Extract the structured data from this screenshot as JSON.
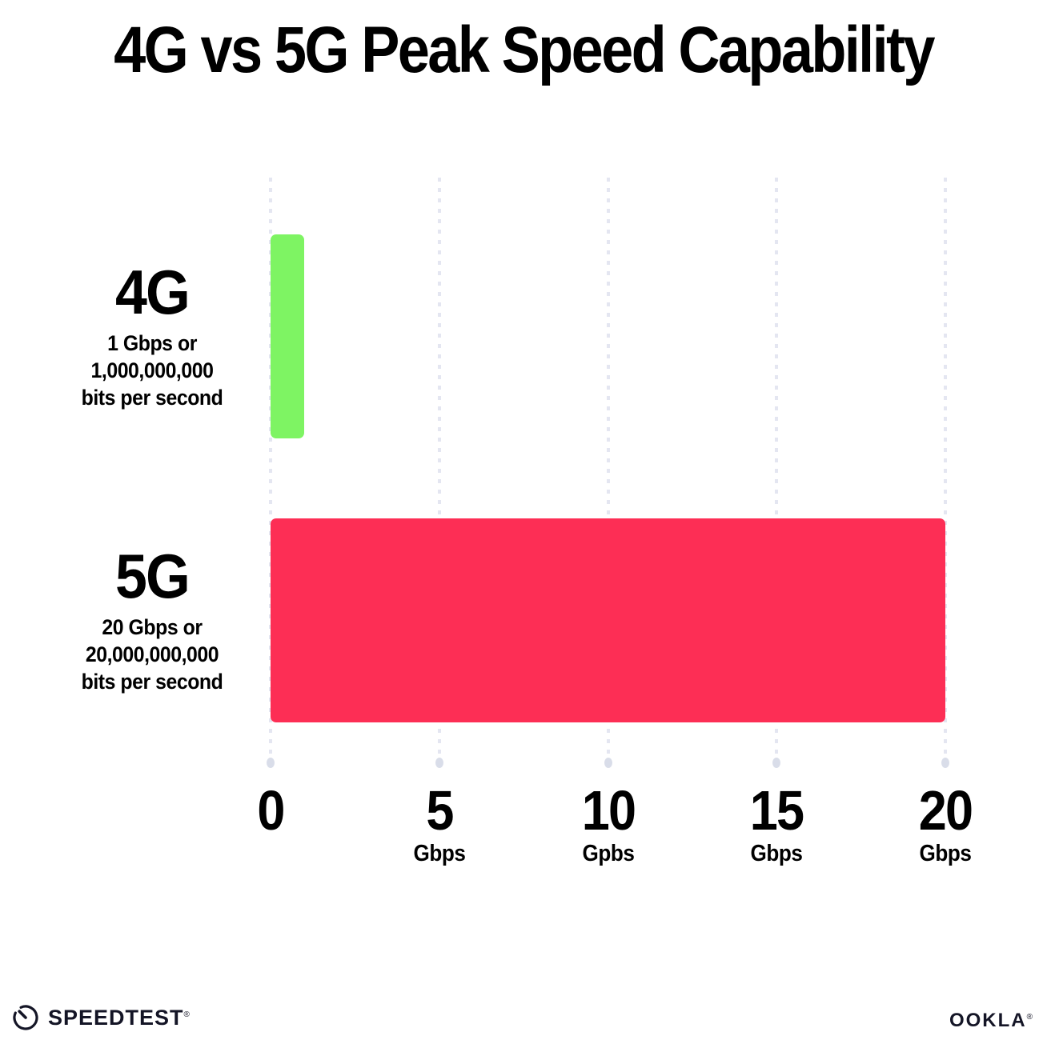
{
  "title": "4G vs 5G Peak Speed Capability",
  "chart_data": {
    "type": "bar",
    "orientation": "horizontal",
    "title": "4G vs 5G Peak Speed Capability",
    "categories": [
      "4G",
      "5G"
    ],
    "values": [
      1,
      20
    ],
    "unit": "Gbps",
    "xlim": [
      0,
      20
    ],
    "grid": "dotted-vertical-gridlines",
    "legend": "none",
    "x_ticks": [
      {
        "value": 0,
        "label": "0",
        "sublabel": ""
      },
      {
        "value": 5,
        "label": "5",
        "sublabel": "Gbps"
      },
      {
        "value": 10,
        "label": "10",
        "sublabel": "Gpbs"
      },
      {
        "value": 15,
        "label": "15",
        "sublabel": "Gbps"
      },
      {
        "value": 20,
        "label": "20",
        "sublabel": "Gbps"
      }
    ],
    "bar_colors": [
      "#7EF463",
      "#FD2E55"
    ]
  },
  "rows": [
    {
      "label": "4G",
      "value_gbps": 1,
      "color": "#7EF463",
      "desc_lines": [
        "1 Gbps or",
        "1,000,000,000",
        "bits per second"
      ]
    },
    {
      "label": "5G",
      "value_gbps": 20,
      "color": "#FD2E55",
      "desc_lines": [
        "20 Gbps or",
        "20,000,000,000",
        "bits per second"
      ]
    }
  ],
  "footer": {
    "speedtest_label": "SPEEDTEST",
    "speedtest_trademark": "®",
    "ookla_label": "OOKLA",
    "ookla_trademark": "®"
  },
  "colors": {
    "background": "#FFFFFF",
    "text": "#000000",
    "footer_text": "#141526",
    "bar_4g": "#7EF463",
    "bar_5g": "#FD2E55",
    "gridline": "#E4E6F1",
    "grid_end_dot": "#D9DDE9"
  }
}
